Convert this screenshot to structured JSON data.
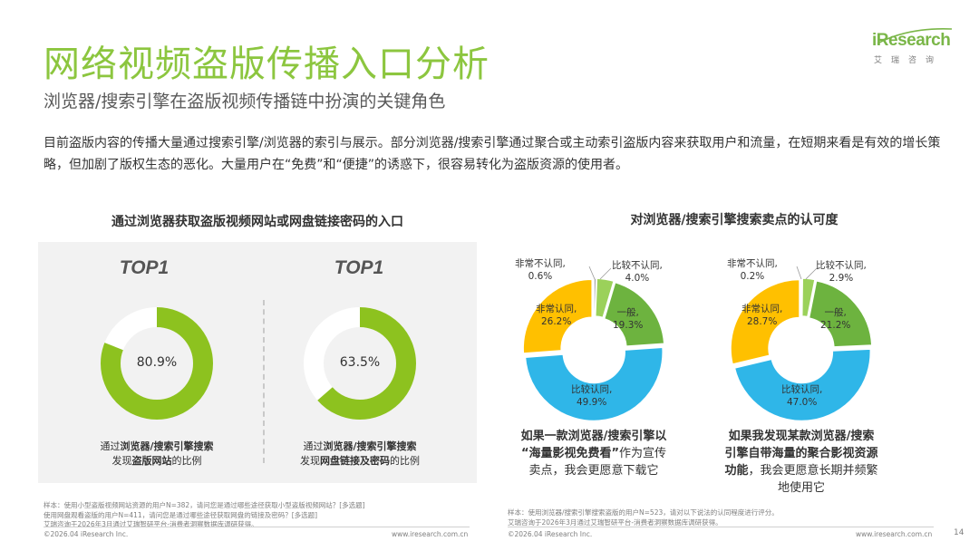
{
  "title": "网络视频盗版传播入口分析",
  "subtitle": "浏览器/搜索引擎在盗版视频传播链中扮演的关键角色",
  "logo": {
    "main": "iResearch",
    "sub": "艾瑞咨询"
  },
  "intro": "目前盗版内容的传播大量通过搜索引擎/浏览器的索引与展示。部分浏览器/搜索引擎通过聚合或主动索引盗版内容来获取用户和流量，在短期来看是有效的增长策略，但加剧了版权生态的恶化。大量用户在“免费”和“便捷”的诱惑下，很容易转化为盗版资源的使用者。",
  "left_panel": {
    "title": "通过浏览器获取盗版视频网站或网盘链接密码的入口",
    "charts": [
      {
        "rank": "TOP1",
        "value_label": "80.9%",
        "caption_prefix": "通过",
        "caption_bold1": "浏览器/搜索引擎搜索",
        "caption_mid": "发现",
        "caption_bold2": "盗版网站",
        "caption_suffix": "的比例"
      },
      {
        "rank": "TOP1",
        "value_label": "63.5%",
        "caption_prefix": "通过",
        "caption_bold1": "浏览器/搜索引擎搜索",
        "caption_mid": "发现",
        "caption_bold2": "网盘链接及密码",
        "caption_suffix": "的比例"
      }
    ]
  },
  "right_panel": {
    "title": "对浏览器/搜索引擎搜索卖点的认可度",
    "charts": [
      {
        "labels": {
          "very_disagree": {
            "name": "非常不认同,",
            "value": "0.6%"
          },
          "disagree": {
            "name": "比较不认同,",
            "value": "4.0%"
          },
          "neutral": {
            "name": "一般,",
            "value": "19.3%"
          },
          "agree": {
            "name": "比较认同,",
            "value": "49.9%"
          },
          "very_agree": {
            "name": "非常认同,",
            "value": "26.2%"
          }
        },
        "caption": {
          "line1": "如果一款浏览器/搜索引擎以",
          "line2_bold": "“海量影视免费看”",
          "line2_rest": "作为宣传",
          "line3": "卖点，我会更愿意下载它"
        }
      },
      {
        "labels": {
          "very_disagree": {
            "name": "非常不认同,",
            "value": "0.2%"
          },
          "disagree": {
            "name": "比较不认同,",
            "value": "2.9%"
          },
          "neutral": {
            "name": "一般,",
            "value": "21.2%"
          },
          "agree": {
            "name": "比较认同,",
            "value": "47.0%"
          },
          "very_agree": {
            "name": "非常认同,",
            "value": "28.7%"
          }
        },
        "caption": {
          "line1": "如果我发现某款浏览器/搜索",
          "line2_bold": "引擎自带海量的聚合影视资源",
          "line3_bold": "功能",
          "line3_rest": "，我会更愿意长期并频繁",
          "line4": "地使用它"
        }
      }
    ]
  },
  "footer": {
    "left_note1": "样本：使用小型盗版视频网站资源的用户N=382，请问您是通过哪些途径获取小型盗版视频网站？[多选题]",
    "left_note2": "使用网盘观看盗版的用户N=411，请问您是通过哪些途径获取网盘的链接及密码？[多选题]",
    "left_note3": "艾瑞咨询于2026年3月通过艾瑞智研平台-消费者洞察数据库调研获得。",
    "right_note1": "样本：使用浏览器/搜索引擎搜索盗版的用户N=523，请对以下说法的认同程度进行评分。",
    "right_note2": "艾瑞咨询于2026年3月通过艾瑞智研平台-消费者洞察数据库调研获得。",
    "copyright_left": "©2026.04 iResearch Inc.",
    "url_left": "www.iresearch.com.cn",
    "copyright_right": "©2026.04 iResearch Inc.",
    "url_right": "www.iresearch.com.cn",
    "page_number": "14"
  },
  "colors": {
    "title_green": "#8cc63f",
    "donut_green": "#8dc21f",
    "donut_track": "#ffffff",
    "pie_very_disagree": "#a6a6a6",
    "pie_disagree": "#9bd15a",
    "pie_neutral": "#6db33f",
    "pie_agree": "#2fb6e8",
    "pie_very_agree": "#ffc000"
  },
  "chart_data": [
    {
      "type": "pie",
      "title": "通过浏览器获取盗版视频网站或网盘链接密码的入口",
      "categories": [
        "通过浏览器/搜索引擎搜索发现盗版网站的比例"
      ],
      "values": [
        80.9
      ],
      "unit": "%"
    },
    {
      "type": "pie",
      "title": "通过浏览器获取盗版视频网站或网盘链接密码的入口",
      "categories": [
        "通过浏览器/搜索引擎搜索发现网盘链接及密码的比例"
      ],
      "values": [
        63.5
      ],
      "unit": "%"
    },
    {
      "type": "pie",
      "title": "对浏览器/搜索引擎搜索卖点的认可度",
      "categories": [
        "非常不认同",
        "比较不认同",
        "一般",
        "比较认同",
        "非常认同"
      ],
      "values": [
        0.6,
        4.0,
        19.3,
        49.9,
        26.2
      ],
      "unit": "%"
    },
    {
      "type": "pie",
      "title": "对浏览器/搜索引擎搜索卖点的认可度",
      "categories": [
        "非常不认同",
        "比较不认同",
        "一般",
        "比较认同",
        "非常认同"
      ],
      "values": [
        0.2,
        2.9,
        21.2,
        47.0,
        28.7
      ],
      "unit": "%"
    }
  ]
}
